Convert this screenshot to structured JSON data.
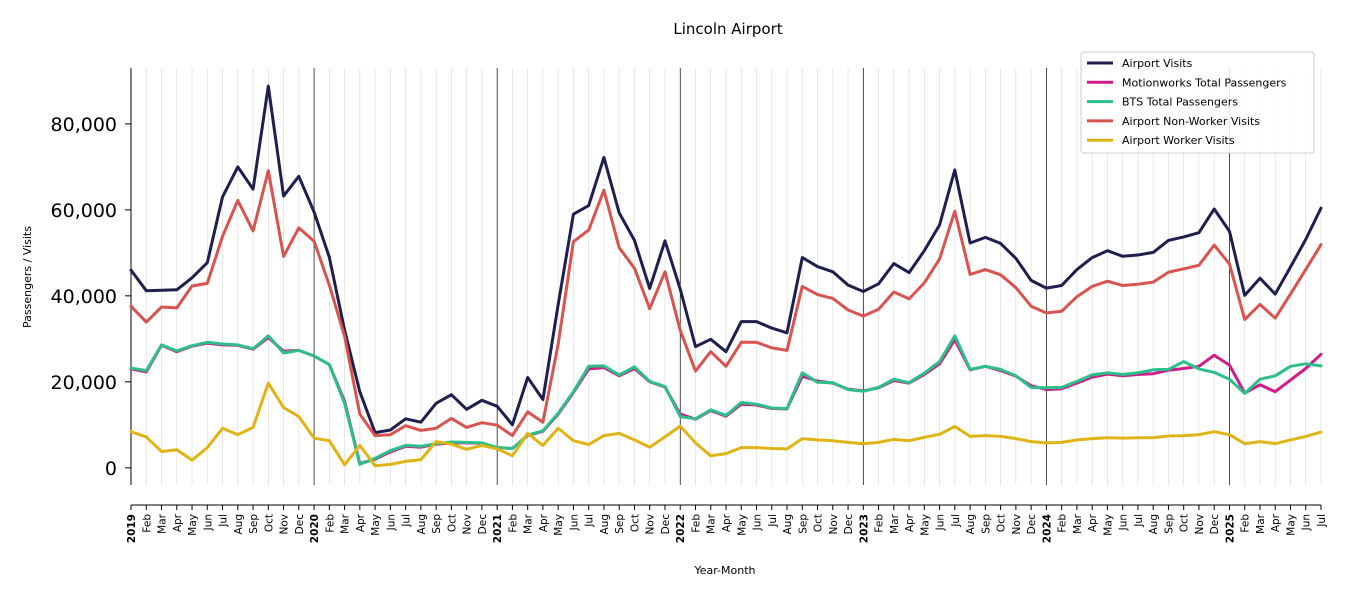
{
  "chart_data": {
    "type": "line",
    "title": "Lincoln Airport",
    "xlabel": "Year-Month",
    "ylabel": "Passengers / Visits",
    "ylim": [
      -4000,
      93000
    ],
    "yticks": [
      0,
      20000,
      40000,
      60000,
      80000
    ],
    "ytick_labels": [
      "0",
      "20,000",
      "40,000",
      "60,000",
      "80,000"
    ],
    "legend_position": "top-right",
    "grid": "vertical monthly gridlines, darker lines at each January",
    "x_start": "2019-01",
    "x_labels": [
      "2019",
      "Feb",
      "Mar",
      "Apr",
      "May",
      "Jun",
      "Jul",
      "Aug",
      "Sep",
      "Oct",
      "Nov",
      "Dec",
      "2020",
      "Feb",
      "Mar",
      "Apr",
      "May",
      "Jun",
      "Jul",
      "Aug",
      "Sep",
      "Oct",
      "Nov",
      "Dec",
      "2021",
      "Feb",
      "Mar",
      "Apr",
      "May",
      "Jun",
      "Jul",
      "Aug",
      "Sep",
      "Oct",
      "Nov",
      "Dec",
      "2022",
      "Feb",
      "Mar",
      "Apr",
      "May",
      "Jun",
      "Jul",
      "Aug",
      "Sep",
      "Oct",
      "Nov",
      "Dec",
      "2023",
      "Feb",
      "Mar",
      "Apr",
      "May",
      "Jun",
      "Jul",
      "Aug",
      "Sep",
      "Oct",
      "Nov",
      "Dec",
      "2024",
      "Feb",
      "Mar",
      "Apr",
      "May",
      "Jun",
      "Jul",
      "Aug",
      "Sep",
      "Oct",
      "Nov",
      "Dec",
      "2025",
      "Feb",
      "Mar",
      "Apr",
      "May",
      "Jun",
      "Jul"
    ],
    "series": [
      {
        "name": "Airport Visits",
        "color": "#1f1f4f",
        "values": [
          46000,
          41200,
          41300,
          41400,
          44200,
          47700,
          63000,
          70000,
          64800,
          88800,
          63200,
          67800,
          59500,
          49000,
          32000,
          17700,
          8200,
          8800,
          11400,
          10600,
          15000,
          17000,
          13600,
          15700,
          14300,
          10000,
          21000,
          15900,
          38000,
          59000,
          61000,
          72200,
          59300,
          52900,
          41700,
          52800,
          41600,
          28200,
          29900,
          27000,
          34000,
          34000,
          32500,
          31400,
          48900,
          46800,
          45600,
          42500,
          41000,
          42800,
          47500,
          45400,
          50500,
          56500,
          69300,
          52300,
          53600,
          52200,
          48700,
          43600,
          41800,
          42400,
          46100,
          48900,
          50500,
          49200,
          49500,
          50100,
          52900,
          53700,
          54700,
          60200,
          55000,
          40100,
          44100,
          40400,
          46700,
          53100,
          60400
        ]
      },
      {
        "name": "Motionworks Total Passengers",
        "color": "#cf1c8a",
        "values": [
          23000,
          22300,
          28500,
          27000,
          28300,
          29000,
          28600,
          28500,
          27600,
          30300,
          27100,
          27300,
          26000,
          24000,
          15500,
          1000,
          2000,
          3700,
          5000,
          4800,
          5500,
          5800,
          5800,
          5700,
          4700,
          4500,
          7500,
          8500,
          12500,
          17500,
          23000,
          23300,
          21400,
          23100,
          20000,
          18800,
          12500,
          11300,
          13300,
          12000,
          14800,
          14600,
          13800,
          13700,
          21300,
          20200,
          19700,
          18300,
          17900,
          18600,
          20300,
          19700,
          21700,
          24200,
          29800,
          22800,
          23600,
          22600,
          21300,
          19100,
          18200,
          18400,
          19700,
          21100,
          21800,
          21400,
          21700,
          21900,
          22700,
          23100,
          23600,
          26200,
          23900,
          17400,
          19300,
          17700,
          20400,
          23100,
          26400
        ]
      },
      {
        "name": "BTS Total Passengers",
        "color": "#2dbf8a",
        "values": [
          23200,
          22600,
          28600,
          27200,
          28400,
          29200,
          28800,
          28600,
          27700,
          30700,
          26700,
          27300,
          26000,
          24000,
          15000,
          800,
          2200,
          4000,
          5200,
          5000,
          5600,
          6000,
          5900,
          5800,
          4700,
          4500,
          7600,
          8600,
          12700,
          17700,
          23600,
          23700,
          21600,
          23500,
          20100,
          18900,
          11900,
          11400,
          13500,
          12200,
          15200,
          14800,
          13900,
          13800,
          22100,
          19900,
          19800,
          18200,
          17800,
          18700,
          20600,
          19800,
          22000,
          24700,
          30700,
          22900,
          23600,
          22900,
          21400,
          18700,
          18600,
          18700,
          20100,
          21600,
          22100,
          21700,
          22100,
          22800,
          22900,
          24700,
          23000,
          22200,
          20600,
          17300,
          20600,
          21400,
          23600,
          24200,
          23700
        ]
      },
      {
        "name": "Airport Non-Worker Visits",
        "color": "#d9534f",
        "values": [
          37600,
          33900,
          37400,
          37200,
          42300,
          42900,
          53800,
          62200,
          55100,
          69100,
          49200,
          55800,
          52700,
          42500,
          30600,
          12500,
          7500,
          7700,
          9800,
          8700,
          9200,
          11500,
          9400,
          10500,
          9900,
          7500,
          13000,
          10600,
          28800,
          52600,
          55300,
          64600,
          51200,
          46400,
          37000,
          45600,
          32000,
          22500,
          27000,
          23600,
          29200,
          29200,
          27900,
          27300,
          42200,
          40300,
          39400,
          36700,
          35300,
          36900,
          40900,
          39300,
          43000,
          48600,
          59700,
          45000,
          46100,
          44900,
          41900,
          37600,
          36000,
          36400,
          39800,
          42200,
          43400,
          42400,
          42700,
          43200,
          45500,
          46300,
          47100,
          51800,
          47400,
          34500,
          38000,
          34800,
          40400,
          46100,
          51900
        ]
      },
      {
        "name": "Airport Worker Visits",
        "color": "#e0b416",
        "values": [
          8400,
          7200,
          3800,
          4200,
          1800,
          4700,
          9200,
          7700,
          9400,
          19700,
          14000,
          11900,
          6900,
          6300,
          700,
          5200,
          500,
          800,
          1500,
          1900,
          6100,
          5500,
          4300,
          5200,
          4400,
          2800,
          8000,
          5200,
          9200,
          6300,
          5400,
          7500,
          8000,
          6500,
          4800,
          7200,
          9700,
          5800,
          2800,
          3300,
          4700,
          4700,
          4500,
          4400,
          6800,
          6500,
          6300,
          5900,
          5600,
          5900,
          6600,
          6300,
          7100,
          7800,
          9600,
          7300,
          7500,
          7300,
          6800,
          6100,
          5800,
          5900,
          6500,
          6800,
          7000,
          6900,
          7000,
          7000,
          7400,
          7500,
          7700,
          8400,
          7700,
          5600,
          6100,
          5600,
          6500,
          7300,
          8300
        ]
      }
    ]
  }
}
